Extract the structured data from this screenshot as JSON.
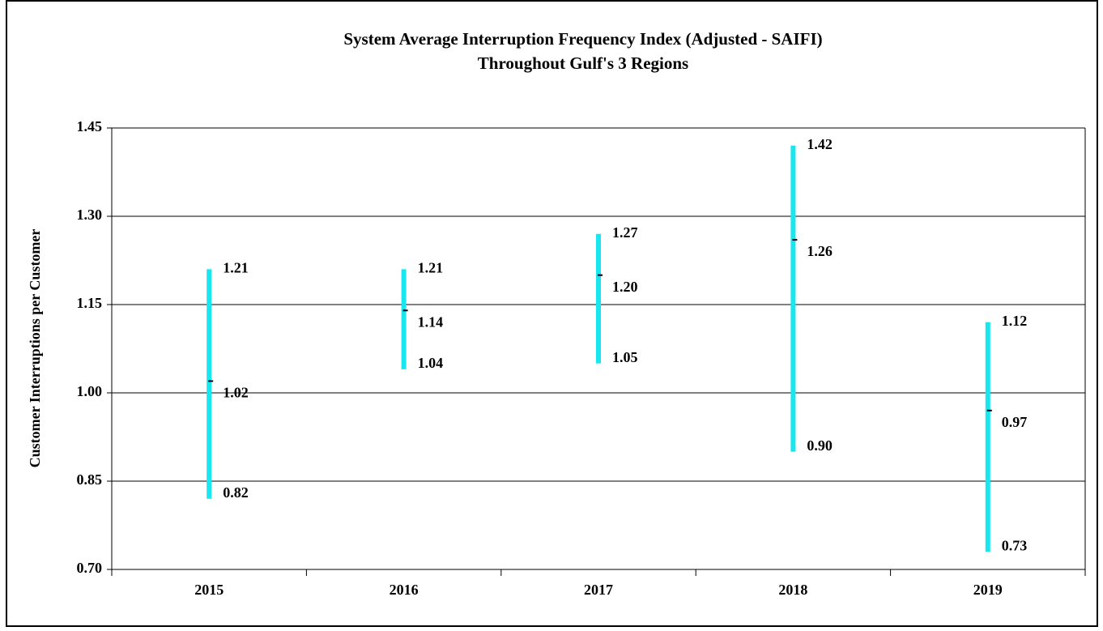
{
  "chart_data": {
    "type": "range",
    "title": "System Average Interruption Frequency Index (Adjusted - SAIFI)",
    "subtitle": "Throughout Gulf's 3 Regions",
    "y_label": "Customer Interruptions  per Customer",
    "categories": [
      "2015",
      "2016",
      "2017",
      "2018",
      "2019"
    ],
    "high": {
      "values": [
        1.21,
        1.21,
        1.27,
        1.42,
        1.12
      ],
      "value_labels": [
        "1.21",
        "1.21",
        "1.27",
        "1.42",
        "1.12"
      ]
    },
    "mean": {
      "values": [
        1.02,
        1.14,
        1.2,
        1.26,
        0.97
      ],
      "value_labels": [
        "1.02",
        "1.14",
        "1.20",
        "1.26",
        "0.97"
      ]
    },
    "low": {
      "values": [
        0.82,
        1.04,
        1.05,
        0.9,
        0.73
      ],
      "value_labels": [
        "0.82",
        "1.04",
        "1.05",
        "0.90",
        "0.73"
      ]
    },
    "range_color": "#19e6ef",
    "mean_color": "#000000",
    "ylim": [
      0.7,
      1.45
    ],
    "yticks": [
      {
        "value": 0.7,
        "label": "0.70"
      },
      {
        "value": 0.85,
        "label": "0.85"
      },
      {
        "value": 1.0,
        "label": "1.00"
      },
      {
        "value": 1.15,
        "label": "1.15"
      },
      {
        "value": 1.3,
        "label": "1.30"
      },
      {
        "value": 1.45,
        "label": "1.45"
      }
    ],
    "grid": true
  }
}
